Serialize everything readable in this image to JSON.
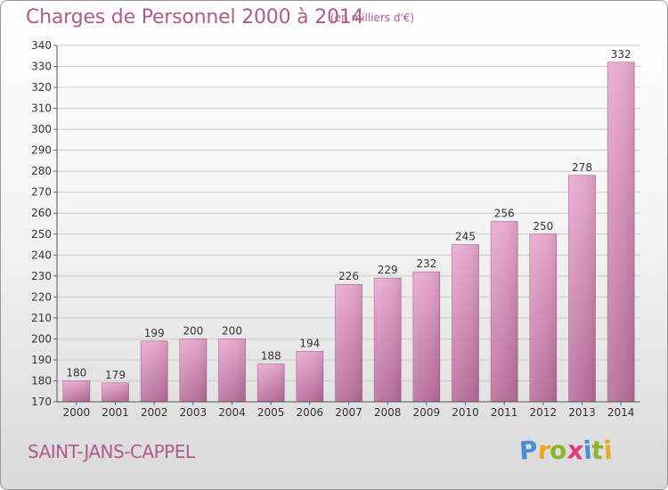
{
  "header": {
    "title": "Charges de Personnel 2000 à 2014",
    "subtitle": "(en milliers d'€)"
  },
  "commune": "SAINT-JANS-CAPPEL",
  "logo": {
    "text": "Proxiti",
    "letters": [
      {
        "ch": "P",
        "color": "#4a8fd0"
      },
      {
        "ch": "r",
        "color": "#f1a51d"
      },
      {
        "ch": "o",
        "color": "#8ab62c"
      },
      {
        "ch": "x",
        "color": "#e23b7d"
      },
      {
        "ch": "i",
        "color": "#4a8fd0"
      },
      {
        "ch": "t",
        "color": "#8ab62c"
      },
      {
        "ch": "i",
        "color": "#f1a51d"
      }
    ]
  },
  "colors": {
    "bar_top": "#e7a6cd",
    "bar_bottom": "#b46b96",
    "accent": "#b05a8e"
  },
  "chart_data": {
    "type": "bar",
    "categories": [
      "2000",
      "2001",
      "2002",
      "2003",
      "2004",
      "2005",
      "2006",
      "2007",
      "2008",
      "2009",
      "2010",
      "2011",
      "2012",
      "2013",
      "2014"
    ],
    "values": [
      180,
      179,
      199,
      200,
      200,
      188,
      194,
      226,
      229,
      232,
      245,
      256,
      250,
      278,
      332
    ],
    "ylim": [
      170,
      340
    ],
    "yticks": [
      170,
      180,
      190,
      200,
      210,
      220,
      230,
      240,
      250,
      260,
      270,
      280,
      290,
      300,
      310,
      320,
      330,
      340
    ],
    "grid": true,
    "xlabel": "",
    "ylabel": ""
  }
}
